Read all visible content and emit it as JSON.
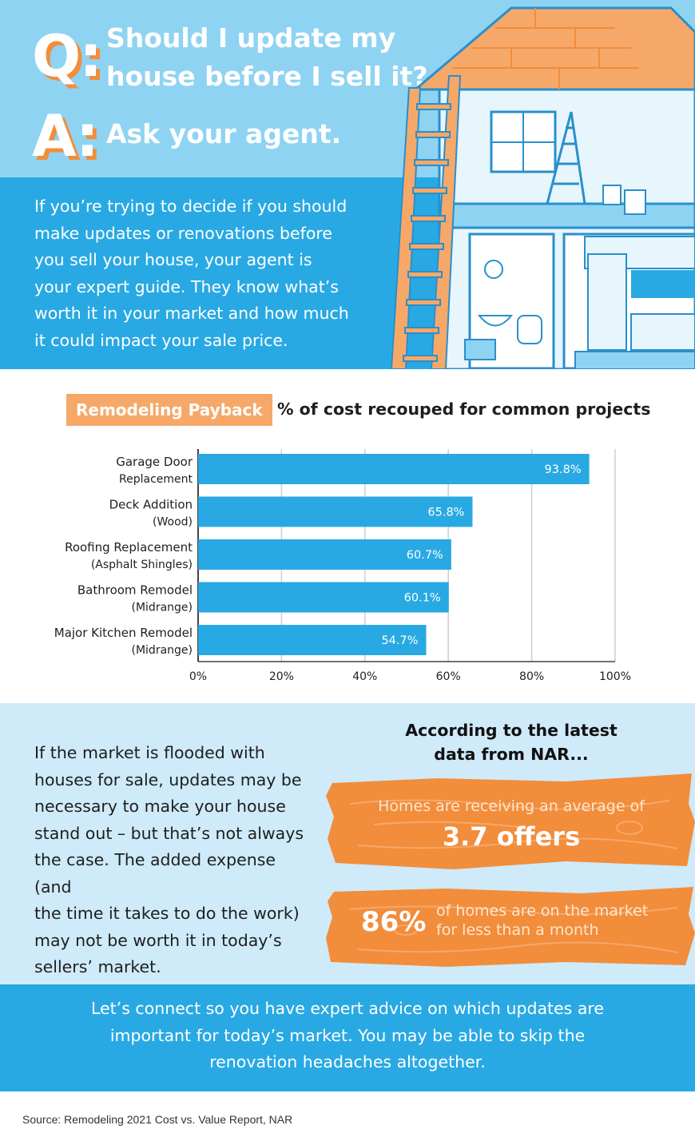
{
  "header": {
    "q_letter": "Q:",
    "question_line1": "Should I update my",
    "question_line2": "house before I sell it?",
    "a_letter": "A:",
    "answer": "Ask your agent.",
    "intro_lines": [
      "If you’re trying to decide if you should",
      "make updates or renovations before",
      "you sell your house, your agent is",
      "your expert guide. They know what’s",
      "worth it in your market and how much",
      "it could impact your sale price."
    ]
  },
  "chart_section": {
    "badge": "Remodeling Payback",
    "heading": "% of cost recouped for common projects"
  },
  "chart_data": {
    "type": "bar",
    "orientation": "horizontal",
    "title": "% of cost recouped for common projects",
    "categories": [
      [
        "Garage Door",
        "Replacement"
      ],
      [
        "Deck Addition",
        "(Wood)"
      ],
      [
        "Roofing Replacement",
        "(Asphalt Shingles)"
      ],
      [
        "Bathroom Remodel",
        "(Midrange)"
      ],
      [
        "Major Kitchen Remodel",
        "(Midrange)"
      ]
    ],
    "values": [
      93.8,
      65.8,
      60.7,
      60.1,
      54.7
    ],
    "value_labels": [
      "93.8%",
      "65.8%",
      "60.7%",
      "60.1%",
      "54.7%"
    ],
    "x_ticks": [
      0,
      20,
      40,
      60,
      80,
      100
    ],
    "x_tick_labels": [
      "0%",
      "20%",
      "40%",
      "60%",
      "80%",
      "100%"
    ],
    "xlim": [
      0,
      100
    ],
    "grid": true,
    "bar_color": "#29a9e3"
  },
  "nar": {
    "left_lines": [
      "If the market is flooded with",
      "houses for sale, updates may be",
      "necessary to make your house",
      "stand out – but that’s not always",
      "the case. The added expense (and",
      "the time it takes to do the work)",
      "may not be worth it in today’s",
      "sellers’ market."
    ],
    "title_line1": "According to the latest",
    "title_line2": "data from NAR...",
    "plank1_line1": "Homes are receiving an average of",
    "plank1_line2": "3.7 offers",
    "plank2_pct": "86%",
    "plank2_line1": "of homes are on the market",
    "plank2_line2": "for less than a month"
  },
  "cta": {
    "lines": [
      "Let’s connect so you have expert advice on which updates are",
      "important for today’s market. You may be able to skip the",
      "renovation headaches altogether."
    ]
  },
  "source": "Source: Remodeling 2021 Cost vs. Value Report, NAR",
  "colors": {
    "sky": "#8fd3f3",
    "blue": "#29a9e3",
    "light_blue": "#cfeaf9",
    "orange": "#f28d3c",
    "orange_light": "#f6a869"
  }
}
